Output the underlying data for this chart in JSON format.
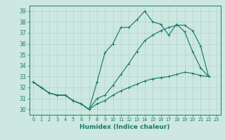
{
  "xlabel": "Humidex (Indice chaleur)",
  "bg_color": "#cce8e0",
  "line_color": "#1a7a6e",
  "grid_color": "#aacfc8",
  "xlim": [
    -0.5,
    23.5
  ],
  "ylim": [
    29.5,
    39.5
  ],
  "yticks": [
    30,
    31,
    32,
    33,
    34,
    35,
    36,
    37,
    38,
    39
  ],
  "xticks": [
    0,
    1,
    2,
    3,
    4,
    5,
    6,
    7,
    8,
    9,
    10,
    11,
    12,
    13,
    14,
    15,
    16,
    17,
    18,
    19,
    20,
    21,
    22,
    23
  ],
  "line1_y": [
    32.5,
    32.0,
    31.5,
    31.3,
    31.3,
    30.8,
    30.5,
    30.0,
    32.5,
    35.2,
    36.0,
    37.5,
    37.5,
    38.2,
    39.0,
    38.0,
    37.8,
    36.8,
    37.8,
    37.1,
    35.3,
    33.8,
    33.0,
    null
  ],
  "line2_y": [
    32.5,
    32.0,
    31.5,
    31.3,
    31.3,
    30.8,
    30.5,
    30.0,
    31.0,
    31.3,
    32.2,
    33.2,
    34.2,
    35.3,
    36.3,
    36.8,
    37.2,
    37.5,
    37.7,
    37.7,
    37.2,
    35.8,
    33.0,
    null
  ],
  "line3_y": [
    32.5,
    32.0,
    31.5,
    31.3,
    31.3,
    30.8,
    30.5,
    30.0,
    30.5,
    30.8,
    31.3,
    31.7,
    32.0,
    32.3,
    32.6,
    32.8,
    32.9,
    33.0,
    33.2,
    33.4,
    33.3,
    33.1,
    33.0,
    null
  ]
}
